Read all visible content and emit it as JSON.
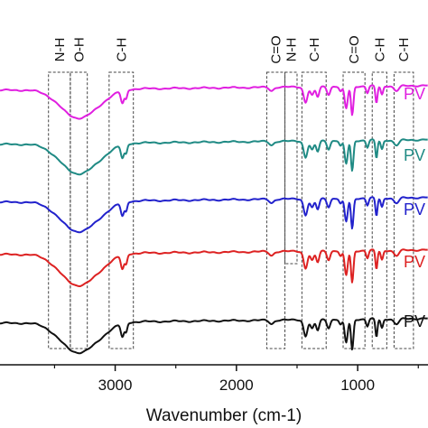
{
  "chart_data": {
    "type": "line",
    "title": "",
    "xlabel": "Wavenumber (cm-1)",
    "ylabel": "",
    "xlim": [
      3950,
      420
    ],
    "x_reversed": true,
    "x_ticks": [
      {
        "value": 3000,
        "label": "3000"
      },
      {
        "value": 2000,
        "label": "2000"
      },
      {
        "value": 1000,
        "label": "1000"
      }
    ],
    "band_annotations": [
      {
        "label": "N-H",
        "from": 3550,
        "to": 3370
      },
      {
        "label": "O-H",
        "from": 3370,
        "to": 3230
      },
      {
        "label": "C-H",
        "from": 3050,
        "to": 2850
      },
      {
        "label": "C=O",
        "from": 1750,
        "to": 1600
      },
      {
        "label": "N-H",
        "from": 1600,
        "to": 1500
      },
      {
        "label": "C-H",
        "from": 1460,
        "to": 1260
      },
      {
        "label": "C=O",
        "from": 1120,
        "to": 940
      },
      {
        "label": "C-H",
        "from": 880,
        "to": 760
      },
      {
        "label": "C-H",
        "from": 700,
        "to": 540
      }
    ],
    "series": [
      {
        "label": "PV",
        "color": "#e01fe0"
      },
      {
        "label": "PV",
        "color": "#1f8a84"
      },
      {
        "label": "PV",
        "color": "#2222cc"
      },
      {
        "label": "PV",
        "color": "#dd2222"
      },
      {
        "label": "PV",
        "color": "#111111"
      }
    ]
  }
}
